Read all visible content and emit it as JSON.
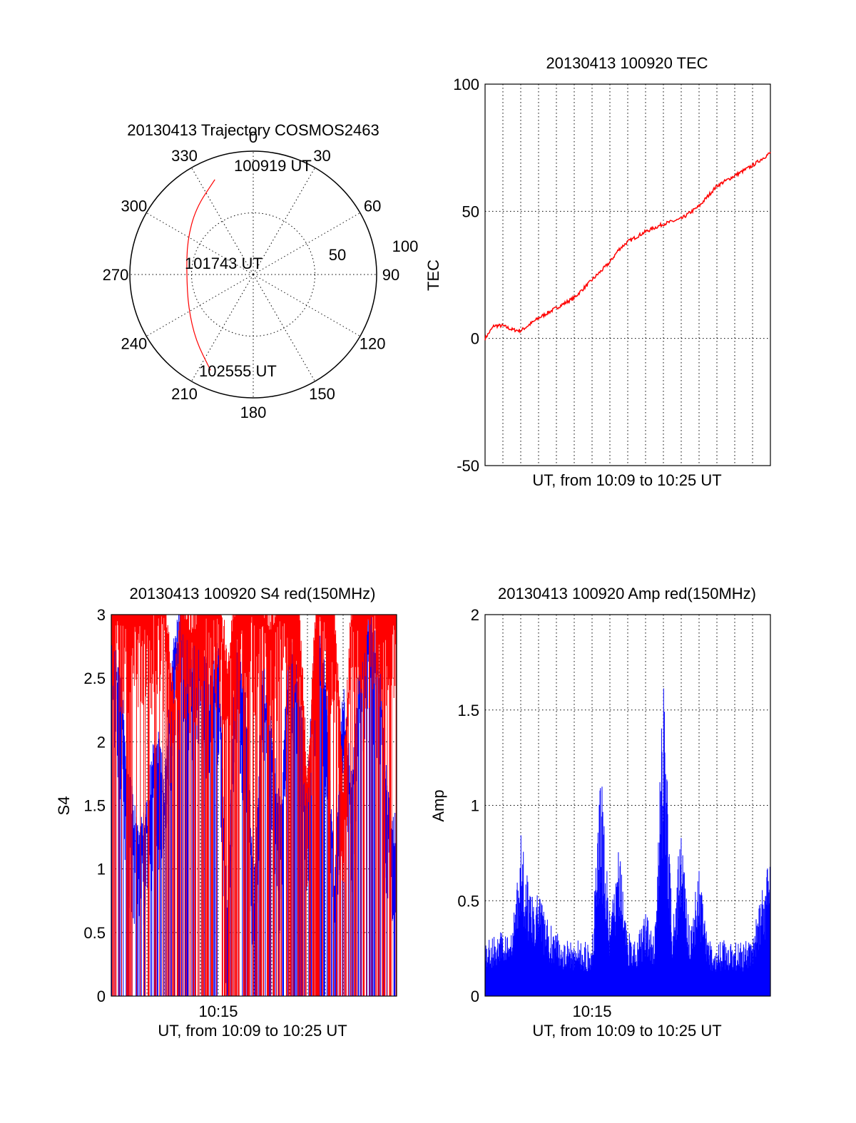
{
  "colors": {
    "red": "#ff0000",
    "blue": "#0000ff",
    "axis": "#000000",
    "background": "#ffffff"
  },
  "polar": {
    "title": "20130413 Trajectory COSMOS2463",
    "angle_labels": [
      "0",
      "30",
      "60",
      "90",
      "120",
      "150",
      "180",
      "210",
      "240",
      "270",
      "300",
      "330"
    ],
    "ring_labels": [
      "50",
      "100"
    ],
    "annotations": {
      "start": "100919 UT",
      "mid": "101743 UT",
      "end": "102555 UT"
    }
  },
  "chart_data": [
    {
      "type": "polar",
      "title": "20130413 Trajectory COSMOS2463",
      "angle_ticks": [
        0,
        30,
        60,
        90,
        120,
        150,
        180,
        210,
        240,
        270,
        300,
        330
      ],
      "radial_range": [
        0,
        100
      ],
      "radial_rings": [
        50,
        100
      ],
      "radial_ring_labels": [
        "50",
        "100"
      ],
      "series": [
        {
          "color": "#ff0000",
          "points": [
            {
              "az": 338,
              "r": 83
            },
            {
              "az": 319,
              "r": 71
            },
            {
              "az": 297,
              "r": 60
            },
            {
              "az": 270,
              "r": 54
            },
            {
              "az": 243,
              "r": 59
            },
            {
              "az": 221,
              "r": 71
            },
            {
              "az": 204,
              "r": 85
            }
          ]
        }
      ],
      "annotations": [
        "100919 UT",
        "101743 UT",
        "102555 UT"
      ]
    },
    {
      "type": "line",
      "title": "20130413 100920 TEC",
      "ylabel": "TEC",
      "xlabel": "UT, from 10:09 to 10:25 UT",
      "xlim": [
        0,
        16
      ],
      "ylim": [
        -50,
        100
      ],
      "y_ticks": [
        -50,
        0,
        50,
        100
      ],
      "x_ticks": [],
      "grid": true,
      "series": [
        {
          "color": "#ff0000",
          "x": [
            0,
            0.5,
            1,
            1.5,
            2,
            3,
            4,
            5,
            6,
            7,
            7.5,
            8,
            9,
            10,
            11,
            12,
            13,
            14,
            15,
            16
          ],
          "y": [
            0,
            5,
            5,
            3.5,
            3,
            8,
            12,
            16,
            23,
            30,
            35,
            38,
            42,
            45,
            47,
            52,
            60,
            64,
            68,
            73
          ]
        }
      ]
    },
    {
      "type": "line",
      "title": "20130413 100920 S4 red(150MHz)",
      "ylabel": "S4",
      "xlabel": "UT, from 10:09 to 10:25 UT",
      "x_tick_labels": [
        "10:15"
      ],
      "xlim": [
        0,
        16
      ],
      "ylim": [
        0,
        3
      ],
      "y_ticks": [
        0,
        0.5,
        1,
        1.5,
        2,
        2.5,
        3
      ],
      "y_tick_labels": [
        "0",
        "0.5",
        "1",
        "1.5",
        "2",
        "2.5",
        "3"
      ],
      "grid": true,
      "series": [
        {
          "color": "#ff0000",
          "x": [
            0,
            0.5,
            1,
            1.5,
            2,
            2.5,
            3,
            3.5,
            4,
            4.5,
            5,
            5.5,
            6,
            6.5,
            7,
            7.5,
            8,
            8.5,
            9,
            9.5,
            10,
            10.5,
            11,
            11.5,
            12,
            12.5,
            13,
            13.5,
            14,
            14.5,
            15,
            15.5,
            16
          ],
          "y": [
            3,
            3,
            3,
            3,
            3,
            3,
            3,
            2.2,
            3,
            2.8,
            3,
            3,
            3,
            2.5,
            3,
            3,
            3,
            3,
            2.8,
            3,
            3,
            3,
            1.5,
            3,
            3,
            3,
            1.5,
            3,
            3,
            3,
            3,
            3,
            3
          ]
        },
        {
          "color": "#0000ff",
          "x": [
            0,
            0.5,
            1,
            1.5,
            2,
            2.5,
            3,
            3.5,
            4,
            4.5,
            5,
            5.5,
            6,
            6.5,
            7,
            7.5,
            8,
            8.5,
            9,
            9.5,
            10,
            10.5,
            11,
            11.5,
            12,
            12.5,
            13,
            13.5,
            14,
            14.5,
            15,
            15.5,
            16
          ],
          "y": [
            2.8,
            2.3,
            1.5,
            1.1,
            1.3,
            1.9,
            1.5,
            2.6,
            2.9,
            2.4,
            2.8,
            2.2,
            2.6,
            0.55,
            2.7,
            2.2,
            0.7,
            2.4,
            1.9,
            1.2,
            2.7,
            2.3,
            1.5,
            2.8,
            2.4,
            0.8,
            2.2,
            1.5,
            2.6,
            2.9,
            2.5,
            1.4,
            1.1
          ]
        }
      ]
    },
    {
      "type": "line",
      "title": "20130413 100920 Amp red(150MHz)",
      "ylabel": "Amp",
      "xlabel": "UT, from 10:09 to 10:25 UT",
      "x_tick_labels": [
        "10:15"
      ],
      "xlim": [
        0,
        16
      ],
      "ylim": [
        0,
        2
      ],
      "y_ticks": [
        0,
        0.5,
        1,
        1.5,
        2
      ],
      "y_tick_labels": [
        "0",
        "0.5",
        "1",
        "1.5",
        "2"
      ],
      "grid": true,
      "series": [
        {
          "color": "#0000ff",
          "x": [
            0,
            0.5,
            1,
            1.5,
            2,
            2.5,
            3,
            3.5,
            4,
            4.5,
            5,
            5.5,
            6,
            6.5,
            7,
            7.5,
            8,
            8.5,
            9,
            9.5,
            10,
            10.5,
            11,
            11.5,
            12,
            12.5,
            13,
            13.5,
            14,
            14.5,
            15,
            15.5,
            16
          ],
          "y": [
            0.3,
            0.32,
            0.35,
            0.33,
            0.85,
            0.6,
            0.55,
            0.4,
            0.35,
            0.3,
            0.3,
            0.28,
            0.3,
            1.2,
            0.4,
            0.8,
            0.35,
            0.3,
            0.45,
            0.32,
            1.75,
            0.4,
            0.9,
            0.35,
            0.7,
            0.3,
            0.28,
            0.3,
            0.3,
            0.28,
            0.32,
            0.55,
            0.8
          ]
        }
      ]
    }
  ]
}
